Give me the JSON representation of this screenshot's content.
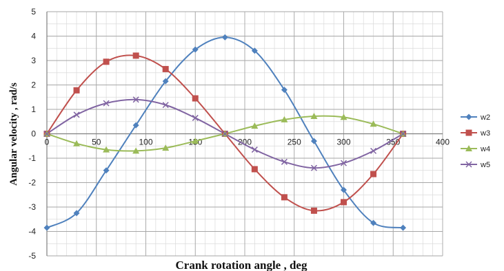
{
  "chart_data": {
    "type": "line",
    "xlabel": "Crank rotation angle , deg",
    "ylabel": "Angular velocity , rad/s",
    "xlim": [
      0,
      400
    ],
    "ylim": [
      -5,
      5
    ],
    "xticks": [
      0,
      50,
      100,
      150,
      200,
      250,
      300,
      350,
      400
    ],
    "yticks": [
      -5,
      -4,
      -3,
      -2,
      -1,
      0,
      1,
      2,
      3,
      4,
      5
    ],
    "grid": true,
    "legend_position": "right",
    "series": [
      {
        "name": "w2",
        "color": "#4f81bd",
        "marker": "diamond",
        "x": [
          0,
          30,
          60,
          90,
          120,
          150,
          180,
          210,
          240,
          270,
          300,
          330,
          360
        ],
        "y": [
          -3.85,
          -3.25,
          -1.5,
          0.35,
          2.15,
          3.45,
          3.95,
          3.4,
          1.8,
          -0.3,
          -2.3,
          -3.65,
          -3.85
        ]
      },
      {
        "name": "w3",
        "color": "#c0504d",
        "marker": "square",
        "x": [
          0,
          30,
          60,
          90,
          120,
          150,
          180,
          210,
          240,
          270,
          300,
          330,
          360
        ],
        "y": [
          0,
          1.78,
          2.95,
          3.2,
          2.65,
          1.45,
          0,
          -1.45,
          -2.6,
          -3.15,
          -2.8,
          -1.65,
          0
        ]
      },
      {
        "name": "w4",
        "color": "#9bbb59",
        "marker": "triangle",
        "x": [
          0,
          30,
          60,
          90,
          120,
          150,
          180,
          210,
          240,
          270,
          300,
          330,
          360
        ],
        "y": [
          0,
          -0.4,
          -0.65,
          -0.7,
          -0.58,
          -0.3,
          0,
          0.32,
          0.58,
          0.72,
          0.68,
          0.4,
          0
        ]
      },
      {
        "name": "w5",
        "color": "#8064a2",
        "marker": "x",
        "x": [
          0,
          30,
          60,
          90,
          120,
          150,
          180,
          210,
          240,
          270,
          300,
          330,
          360
        ],
        "y": [
          0,
          0.78,
          1.25,
          1.4,
          1.18,
          0.65,
          0,
          -0.65,
          -1.15,
          -1.4,
          -1.2,
          -0.7,
          0
        ]
      }
    ]
  }
}
